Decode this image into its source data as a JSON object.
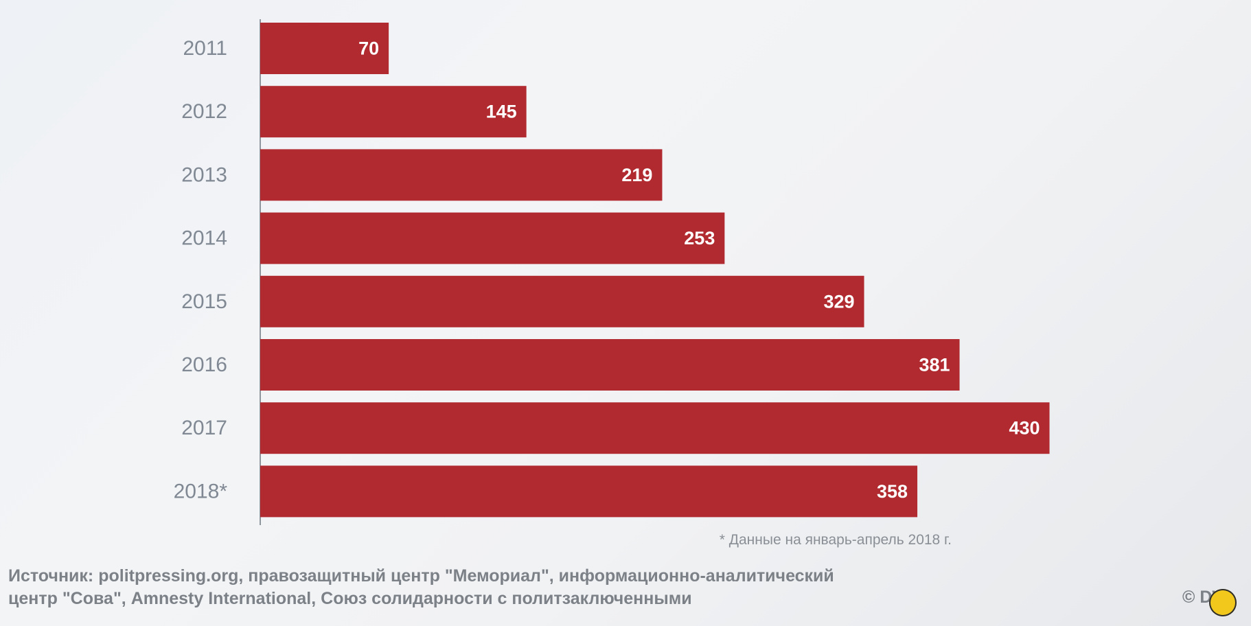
{
  "chart_data": {
    "type": "bar",
    "orientation": "horizontal",
    "categories": [
      "2011",
      "2012",
      "2013",
      "2014",
      "2015",
      "2016",
      "2017",
      "2018*"
    ],
    "values": [
      70,
      145,
      219,
      253,
      329,
      381,
      430,
      358
    ],
    "title": "",
    "xlabel": "",
    "ylabel": "",
    "xlim": [
      0,
      450
    ],
    "grid": false,
    "bar_color": "#b02a30",
    "label_color": "#ffffff",
    "category_label_color": "#7f8893",
    "axis_color": "#8f959c"
  },
  "footnote": "* Данные на январь-апрель 2018 г.",
  "source": {
    "line1": "Источник: politpressing.org, правозащитный центр \"Мемориал\", информационно-аналитический",
    "line2": "центр \"Сова\", Amnesty International, Союз солидарности с политзаключенными"
  },
  "copyright": "© DW",
  "channel_logo": {
    "icon": "channel-logo-icon",
    "color": "#f2c81d"
  }
}
